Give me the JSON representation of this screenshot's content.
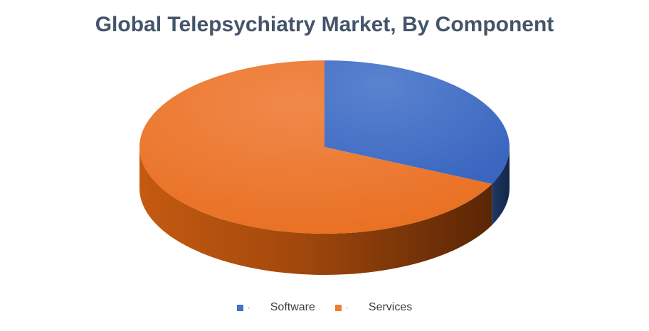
{
  "chart_data": {
    "type": "pie",
    "title": "Global Telepsychiatry Market, By Component",
    "categories": [
      "Software",
      "Services"
    ],
    "values": [
      32,
      68
    ],
    "colors": [
      "#4472c4",
      "#ed7d31"
    ],
    "legend_position": "bottom",
    "style": "3d"
  },
  "legend": {
    "bullet": "·",
    "items": [
      {
        "label": "Software",
        "color": "#4472c4"
      },
      {
        "label": "Services",
        "color": "#ed7d31"
      }
    ]
  }
}
